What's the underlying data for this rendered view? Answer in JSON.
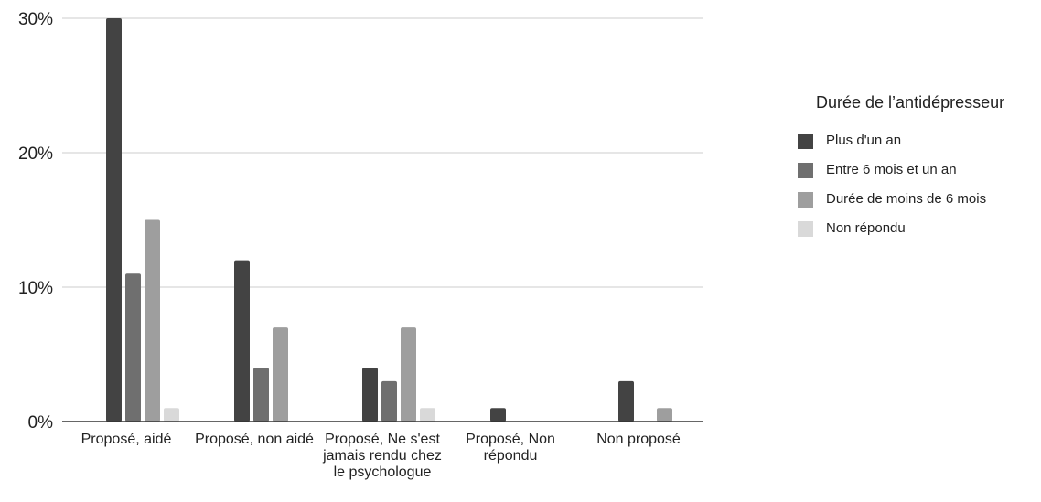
{
  "chart_data": {
    "type": "bar",
    "categories": [
      "Proposé, aidé",
      "Proposé, non aidé",
      "Proposé, Ne s'est jamais rendu chez le psychologue",
      "Proposé, Non répondu",
      "Non proposé"
    ],
    "series": [
      {
        "name": "Plus d'un an",
        "color": "#434343",
        "values": [
          30,
          12,
          4,
          1,
          3
        ]
      },
      {
        "name": "Entre 6 mois et un an",
        "color": "#6f6f6f",
        "values": [
          11,
          4,
          3,
          0,
          0
        ]
      },
      {
        "name": "Durée de moins de 6 mois",
        "color": "#9e9e9e",
        "values": [
          15,
          7,
          7,
          0,
          1
        ]
      },
      {
        "name": "Non répondu",
        "color": "#d9d9d9",
        "values": [
          1,
          0,
          1,
          0,
          0
        ]
      }
    ],
    "ylim": [
      0,
      30
    ],
    "yticks": [
      "0%",
      "10%",
      "20%",
      "30%"
    ],
    "ytick_values": [
      0,
      10,
      20,
      30
    ],
    "legend_title": "Durée de l’antidépresseur",
    "legend_position": "right",
    "grid": true
  }
}
